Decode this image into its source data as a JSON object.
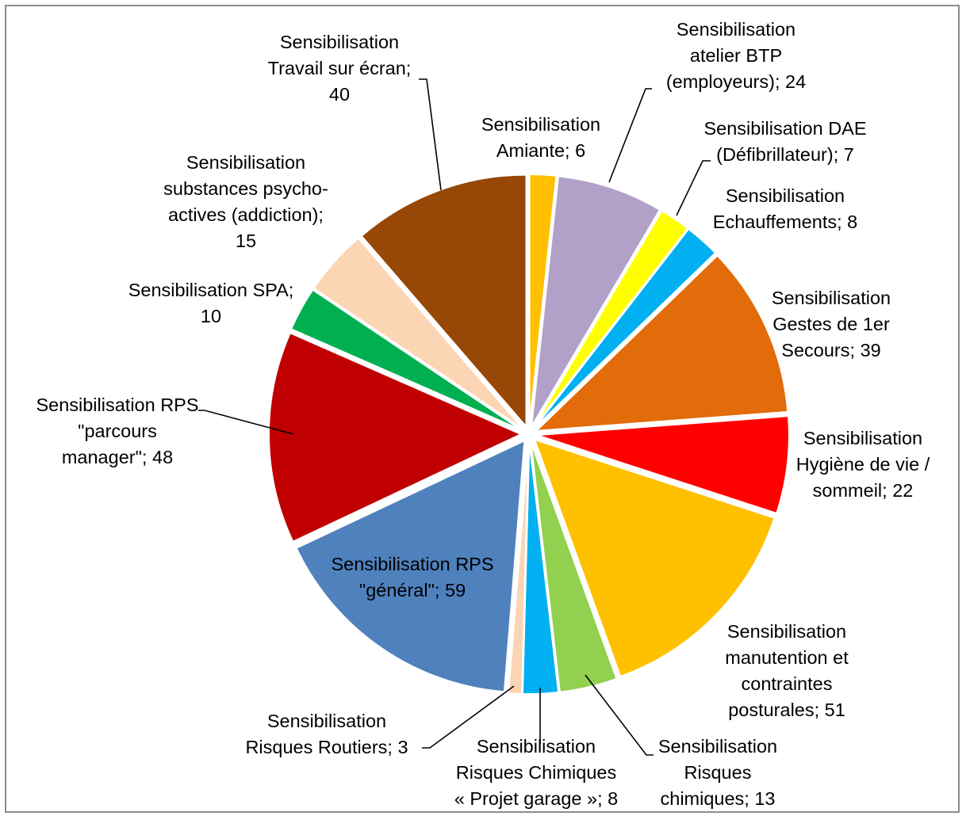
{
  "chart_data": {
    "type": "pie",
    "slices": [
      {
        "label": "Sensibilisation Amiante",
        "value": 6,
        "color": "#FFC000",
        "lines": [
          "Sensibilisation",
          "Amiante; 6"
        ]
      },
      {
        "label": "Sensibilisation atelier BTP (employeurs)",
        "value": 24,
        "color": "#B1A0C7",
        "lines": [
          "Sensibilisation",
          "atelier BTP",
          "(employeurs); 24"
        ]
      },
      {
        "label": "Sensibilisation DAE (Défibrillateur)",
        "value": 7,
        "color": "#FFFF00",
        "lines": [
          "Sensibilisation DAE",
          "(Défibrillateur); 7"
        ]
      },
      {
        "label": "Sensibilisation Echauffements",
        "value": 8,
        "color": "#00B0F0",
        "lines": [
          "Sensibilisation",
          "Echauffements; 8"
        ]
      },
      {
        "label": "Sensibilisation Gestes de 1er Secours",
        "value": 39,
        "color": "#E26B0A",
        "lines": [
          "Sensibilisation",
          "Gestes de 1er",
          "Secours; 39"
        ]
      },
      {
        "label": "Sensibilisation Hygiène de vie / sommeil",
        "value": 22,
        "color": "#FF0000",
        "lines": [
          "Sensibilisation",
          "Hygiène de vie /",
          "sommeil; 22"
        ]
      },
      {
        "label": "Sensibilisation manutention et contraintes posturales",
        "value": 51,
        "color": "#FFC000",
        "lines": [
          "Sensibilisation",
          "manutention et",
          "contraintes",
          "posturales; 51"
        ]
      },
      {
        "label": "Sensibilisation Risques chimiques",
        "value": 13,
        "color": "#92D050",
        "lines": [
          "Sensibilisation",
          "Risques",
          "chimiques; 13"
        ]
      },
      {
        "label": "Sensibilisation Risques Chimiques « Projet garage »",
        "value": 8,
        "color": "#00B0F0",
        "lines": [
          "Sensibilisation",
          "Risques Chimiques",
          "« Projet garage »; 8"
        ]
      },
      {
        "label": "Sensibilisation Risques Routiers",
        "value": 3,
        "color": "#FCD5B4",
        "lines": [
          "Sensibilisation",
          "Risques Routiers; 3"
        ]
      },
      {
        "label": "Sensibilisation RPS \"général\"",
        "value": 59,
        "color": "#4F81BD",
        "lines": [
          "Sensibilisation RPS",
          "\"général\"; 59"
        ]
      },
      {
        "label": "Sensibilisation RPS \"parcours manager\"",
        "value": 48,
        "color": "#C00000",
        "lines": [
          "Sensibilisation RPS",
          "\"parcours",
          "manager\"; 48"
        ]
      },
      {
        "label": "Sensibilisation SPA",
        "value": 10,
        "color": "#00B050",
        "lines": [
          "Sensibilisation SPA;",
          "10"
        ]
      },
      {
        "label": "Sensibilisation substances psycho-actives (addiction)",
        "value": 15,
        "color": "#FCD5B4",
        "lines": [
          "Sensibilisation",
          "substances psycho-",
          "actives (addiction);",
          "15"
        ]
      },
      {
        "label": "Sensibilisation Travail sur écran",
        "value": 40,
        "color": "#974706",
        "lines": [
          "Sensibilisation",
          "Travail sur écran;",
          "40"
        ]
      }
    ]
  }
}
